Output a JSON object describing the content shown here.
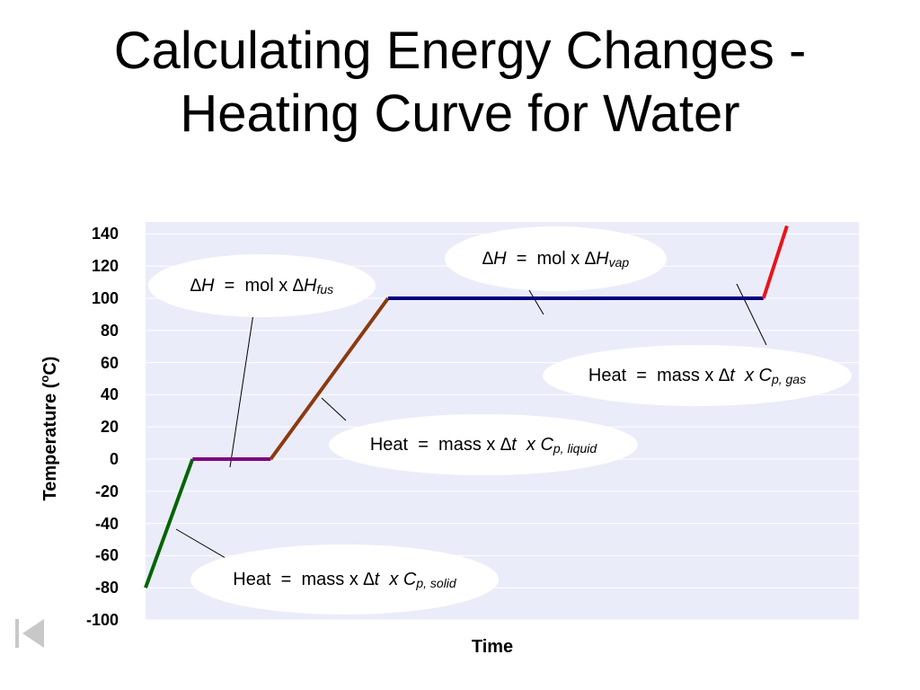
{
  "title": {
    "line1": "Calculating Energy Changes -",
    "line2": "Heating Curve for Water"
  },
  "chart_data": {
    "type": "line",
    "xlabel": "Time",
    "ylabel": "Temperature (oC)",
    "ylim": [
      -100,
      140
    ],
    "yticks": [
      140,
      120,
      100,
      80,
      60,
      40,
      20,
      0,
      -20,
      -40,
      -60,
      -80,
      -100
    ],
    "grid": true,
    "segments": [
      {
        "phase": "solid",
        "color": "#006400",
        "t": [
          0,
          6
        ],
        "temp": [
          -80,
          0
        ]
      },
      {
        "phase": "melting",
        "color": "#800080",
        "t": [
          6,
          16
        ],
        "temp": [
          0,
          0
        ]
      },
      {
        "phase": "liquid",
        "color": "#8b3a0e",
        "t": [
          16,
          31
        ],
        "temp": [
          0,
          100
        ]
      },
      {
        "phase": "boiling",
        "color": "#000080",
        "t": [
          31,
          79
        ],
        "temp": [
          100,
          100
        ]
      },
      {
        "phase": "gas",
        "color": "#e8141c",
        "t": [
          79,
          82
        ],
        "temp": [
          100,
          145
        ]
      }
    ]
  },
  "callouts": {
    "fus": {
      "delta": "∆",
      "h": "H",
      "eq": "=",
      "mol": "mol x",
      "delta2": "∆",
      "h2": "H",
      "sub": "fus"
    },
    "vap": {
      "delta": "∆",
      "h": "H",
      "eq": "=",
      "mol": "mol x",
      "delta2": "∆",
      "h2": "H",
      "sub": "vap"
    },
    "solid": {
      "heat": "Heat",
      "eq": "=",
      "mass": "mass x",
      "delta": "∆",
      "t": "t",
      "x": "x",
      "c": "C",
      "sub": "p, solid"
    },
    "liquid": {
      "heat": "Heat",
      "eq": "=",
      "mass": "mass x",
      "delta": "∆",
      "t": "t",
      "x": "x",
      "c": "C",
      "sub": "p, liquid"
    },
    "gas": {
      "heat": "Heat",
      "eq": "=",
      "mass": "mass x",
      "delta": "∆",
      "t": "t",
      "x": "x",
      "c": "C",
      "sub": "p, gas"
    }
  },
  "nav": {
    "icon": "first-slide-icon"
  }
}
